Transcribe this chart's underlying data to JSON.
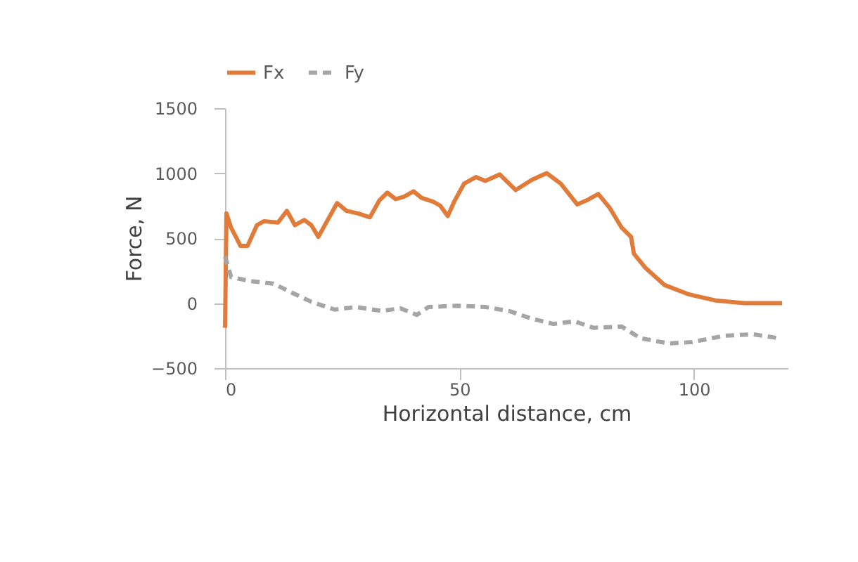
{
  "chart_data": {
    "type": "line",
    "xlabel": "Horizontal distance, cm",
    "ylabel": "Force, N",
    "xlim": [
      0,
      120
    ],
    "xticks": [
      0,
      50,
      100
    ],
    "ylim": [
      -500,
      1500
    ],
    "yticks": [
      -500,
      0,
      500,
      1000,
      1500
    ],
    "grid": false,
    "legend": "top",
    "marker": "none",
    "series": [
      {
        "name": "Fx",
        "color": "#e07b39",
        "line_style": "solid",
        "x": [
          0,
          0.3,
          1.3,
          3.3,
          4.8,
          6.8,
          8.3,
          11.3,
          13.2,
          14.9,
          16.9,
          18.4,
          19.9,
          21.9,
          23.9,
          25.9,
          28.4,
          30.9,
          32.9,
          34.6,
          36.4,
          38.2,
          40.2,
          41.9,
          44.4,
          45.9,
          47.5,
          49,
          51,
          53.5,
          55.5,
          58.6,
          62,
          65.5,
          68.6,
          71.6,
          75.1,
          77.1,
          79.6,
          82.1,
          84.6,
          86.6,
          87.2,
          89.7,
          93.7,
          98.7,
          104.7,
          110.7,
          118.8
        ],
        "values": [
          -190,
          690,
          580,
          440,
          440,
          600,
          630,
          620,
          710,
          600,
          640,
          600,
          510,
          640,
          770,
          710,
          690,
          660,
          790,
          850,
          800,
          820,
          860,
          810,
          780,
          750,
          670,
          790,
          920,
          970,
          940,
          990,
          870,
          950,
          1000,
          920,
          760,
          790,
          840,
          730,
          580,
          510,
          380,
          270,
          140,
          70,
          20,
          0,
          0
        ]
      },
      {
        "name": "Fy",
        "color": "#a5a5a5",
        "line_style": "dashed",
        "x": [
          0,
          1.3,
          5.3,
          10.3,
          14.3,
          18.4,
          23.4,
          27.9,
          33.4,
          37.4,
          40.9,
          43.4,
          49.5,
          55.5,
          60.5,
          65.5,
          70,
          74.5,
          78.6,
          84.6,
          88.6,
          94.6,
          99.6,
          106.6,
          112.6,
          118.1
        ],
        "values": [
          360,
          200,
          170,
          150,
          80,
          10,
          -50,
          -30,
          -60,
          -40,
          -90,
          -30,
          -20,
          -30,
          -60,
          -120,
          -160,
          -140,
          -190,
          -180,
          -270,
          -310,
          -300,
          -250,
          -240,
          -270
        ]
      }
    ]
  }
}
